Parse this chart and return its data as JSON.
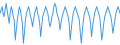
{
  "line_color": "#4499dd",
  "background_color": "#ffffff",
  "linewidth": 0.7,
  "figsize": [
    1.2,
    0.45
  ],
  "dpi": 100,
  "values": [
    0,
    1,
    2,
    0,
    -1,
    1,
    3,
    1,
    -1,
    -3,
    0,
    2,
    1,
    -1,
    -2,
    -8,
    -5,
    -2,
    0,
    2,
    1,
    -1,
    -3,
    -9,
    -6,
    -2,
    0,
    1,
    2,
    1,
    -1,
    -2,
    -4,
    -2,
    0,
    1,
    2,
    0,
    -1,
    -3,
    -7,
    -4,
    -1,
    0,
    1,
    2,
    1,
    0,
    -2,
    -4,
    -3,
    -1,
    0,
    2,
    3,
    2,
    0,
    -1,
    -2,
    -5,
    -3,
    -1,
    0,
    1,
    2,
    1,
    0,
    -1,
    -3,
    -8,
    -5,
    -2,
    0,
    1,
    2,
    1,
    0,
    -1,
    -2,
    -6,
    -9,
    -5,
    -2,
    0,
    1,
    2,
    1,
    0,
    -1,
    -3,
    -7,
    -4,
    -2,
    0,
    1,
    2,
    1,
    0,
    -1,
    -4,
    -8,
    -6,
    -3,
    -1,
    0,
    1,
    2,
    1,
    0,
    -1,
    -3,
    -6,
    -4,
    -2,
    0,
    1,
    2,
    1,
    0
  ]
}
